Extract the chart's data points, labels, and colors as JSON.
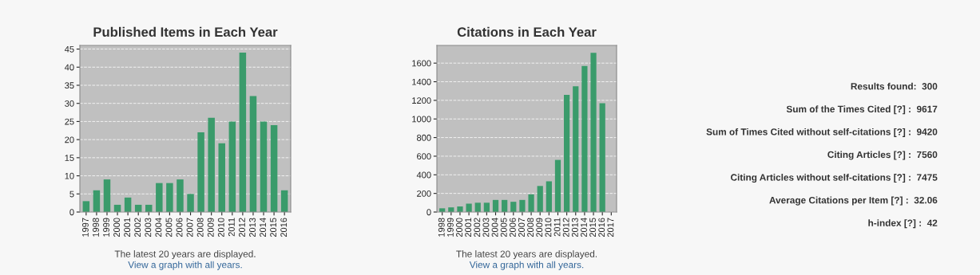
{
  "chart_data": [
    {
      "type": "bar",
      "title": "Published Items in Each Year",
      "color": "#3a9b6b",
      "categories": [
        "1997",
        "1998",
        "1999",
        "2000",
        "2001",
        "2002",
        "2003",
        "2004",
        "2005",
        "2006",
        "2007",
        "2008",
        "2009",
        "2010",
        "2011",
        "2012",
        "2013",
        "2014",
        "2015",
        "2016"
      ],
      "values": [
        3,
        6,
        9,
        2,
        4,
        2,
        2,
        8,
        8,
        9,
        5,
        22,
        26,
        19,
        25,
        44,
        32,
        25,
        24,
        6
      ],
      "ylim": [
        0,
        46
      ],
      "yticks": [
        0,
        5,
        10,
        15,
        20,
        25,
        30,
        35,
        40,
        45
      ],
      "grid": "y",
      "annotations": [
        "The latest 20 years are displayed.",
        "View a graph with all years."
      ]
    },
    {
      "type": "bar",
      "title": "Citations in Each Year",
      "color": "#3a9b6b",
      "categories": [
        "1998",
        "1999",
        "2000",
        "2001",
        "2002",
        "2003",
        "2004",
        "2005",
        "2006",
        "2007",
        "2008",
        "2009",
        "2010",
        "2011",
        "2012",
        "2013",
        "2014",
        "2015",
        "2016",
        "2017"
      ],
      "values": [
        40,
        50,
        60,
        90,
        100,
        100,
        130,
        130,
        110,
        130,
        190,
        280,
        330,
        560,
        1260,
        1350,
        1570,
        1710,
        1170,
        null
      ],
      "ylim": [
        0,
        1790
      ],
      "yticks": [
        0,
        200,
        400,
        600,
        800,
        1000,
        1200,
        1400,
        1600
      ],
      "grid": "y",
      "annotations": [
        "The latest 20 years are displayed.",
        "View a graph with all years."
      ]
    },
    {
      "type": "other",
      "annotations": [
        "Results found:  300",
        "Sum of the Times Cited [?] :  9617",
        "Sum of Times Cited without self-citations [?] :  9420",
        "Citing Articles [?] :  7560",
        "Citing Articles without self-citations [?] :  7475",
        "Average Citations per Item [?] :  32.06",
        "h-index [?] :  42"
      ]
    }
  ]
}
